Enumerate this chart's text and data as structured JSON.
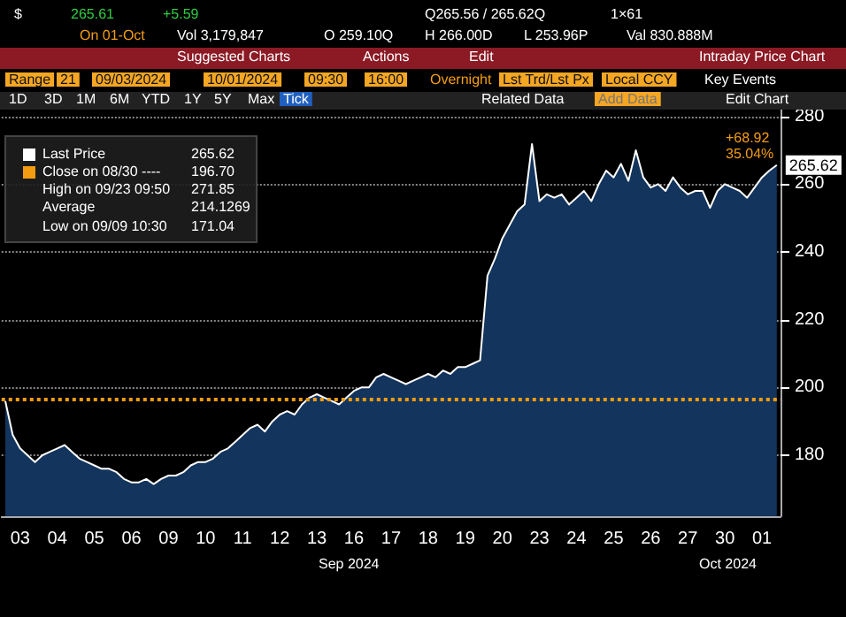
{
  "chart_data": {
    "type": "area",
    "color": "#ffffff",
    "categories": [
      null,
      null,
      "03",
      null,
      null,
      null,
      null,
      "04",
      null,
      null,
      null,
      null,
      "05",
      null,
      null,
      null,
      null,
      "06",
      null,
      null,
      null,
      null,
      "09",
      null,
      null,
      null,
      null,
      "10",
      null,
      null,
      null,
      null,
      "11",
      null,
      null,
      null,
      null,
      "12",
      null,
      null,
      null,
      null,
      "13",
      null,
      null,
      null,
      null,
      "16",
      null,
      null,
      null,
      null,
      "17",
      null,
      null,
      null,
      null,
      "18",
      null,
      null,
      null,
      null,
      "19",
      null,
      null,
      null,
      null,
      "20",
      null,
      null,
      null,
      null,
      "23",
      null,
      null,
      null,
      null,
      "24",
      null,
      null,
      null,
      null,
      "25",
      null,
      null,
      null,
      null,
      "26",
      null,
      null,
      null,
      null,
      "27",
      null,
      null,
      null,
      null,
      "30",
      null,
      null,
      null,
      null,
      "01",
      null,
      null
    ],
    "values": [
      196,
      186,
      182,
      180,
      178,
      180,
      181,
      182,
      183,
      181,
      179,
      178,
      177,
      176,
      176,
      175,
      173,
      172,
      172,
      173,
      171.5,
      173,
      174,
      174,
      175,
      177,
      178,
      178,
      179,
      181,
      182,
      184,
      186,
      188,
      189,
      187,
      190,
      192,
      193,
      192,
      195,
      197,
      198,
      197,
      196,
      195,
      197,
      199,
      200,
      200,
      203,
      204,
      203,
      202,
      201,
      202,
      203,
      204,
      203,
      205,
      204,
      206,
      206,
      207,
      208,
      233,
      238,
      244,
      248,
      252,
      254,
      271.85,
      255,
      257,
      256,
      257,
      254,
      256,
      258,
      255,
      260,
      264,
      262,
      266,
      261,
      270,
      262,
      259,
      260,
      258,
      262,
      259,
      257,
      258,
      258,
      253,
      258,
      260,
      259,
      258,
      256,
      259,
      262,
      264,
      265.62
    ],
    "value_labels": [
      null,
      null,
      null,
      null,
      null,
      null,
      null,
      null,
      null,
      null,
      null,
      null,
      null,
      null,
      null,
      null,
      null,
      null,
      null,
      null,
      null,
      null,
      null,
      null,
      null,
      null,
      null,
      null,
      null,
      null,
      null,
      null,
      null,
      null,
      null,
      null,
      null,
      null,
      null,
      null,
      null,
      null,
      null,
      null,
      null,
      null,
      null,
      null,
      null,
      null,
      null,
      null,
      null,
      null,
      null,
      null,
      null,
      null,
      null,
      null,
      null,
      null,
      null,
      null,
      null,
      null,
      null,
      null,
      null,
      null,
      null,
      null,
      null,
      null,
      null,
      null,
      null,
      null,
      null,
      null,
      null,
      null,
      null,
      null,
      null,
      null,
      null,
      null,
      null,
      null,
      null,
      null,
      null,
      null,
      null,
      null,
      null,
      null,
      null,
      null,
      null,
      null,
      null,
      null,
      "265.62"
    ],
    "ylim": [
      162,
      282
    ],
    "yticks": [
      180,
      200,
      220,
      240,
      260,
      280
    ],
    "grid": "y",
    "marker": "none",
    "ref_lines": [
      {
        "axis": "y",
        "value": 196.7,
        "color": "#f39c12",
        "line_style": "dotted"
      }
    ],
    "annotations": [
      "$",
      "265.61",
      "+5.59",
      "Q265.56 / 265.62Q",
      "1×61",
      "On 01-Oct",
      "Vol 3,179,847",
      "O 259.10Q",
      "H 266.00D",
      "L 253.96P",
      "Val 830.888M",
      "Suggested Charts",
      "Actions",
      "Edit",
      "Intraday Price Chart",
      "Range",
      "21",
      "09/03/2024",
      "10/01/2024",
      "09:30",
      "16:00",
      "Overnight",
      "Lst Trd/Lst Px",
      "Local CCY",
      "Key Events",
      "1D",
      "3D",
      "1M",
      "6M",
      "YTD",
      "1Y",
      "5Y",
      "Max",
      "Tick",
      "Related Data",
      "Add Data",
      "Edit Chart",
      "Last Price",
      "265.62",
      "Close on 08/30 ----",
      "196.70",
      "High on 09/23 09:50",
      "271.85",
      "Average",
      "214.1269",
      "Low on 09/09 10:30",
      "171.04",
      "+68.92",
      "35.04%",
      "Sep 2024",
      "Oct 2024"
    ]
  }
}
